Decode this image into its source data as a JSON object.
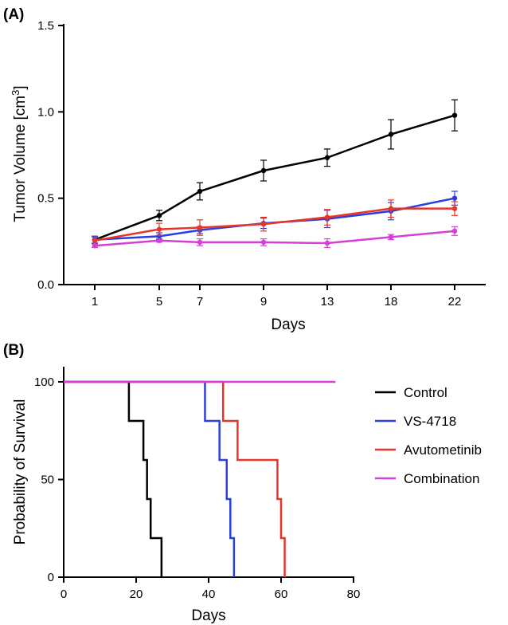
{
  "figure": {
    "panel_a_label": "(A)",
    "panel_b_label": "(B)"
  },
  "chart_data": [
    {
      "type": "line",
      "panel": "(A)",
      "xlabel": "Days",
      "ylabel_main": "Tumor Volume [cm",
      "ylabel_sup": "3",
      "ylabel_tail": "]",
      "categories": [
        "1",
        "5",
        "7",
        "9",
        "13",
        "18",
        "22"
      ],
      "ylim": [
        0,
        1.5
      ],
      "yticks": [
        "0.0",
        "0.5",
        "1.0",
        "1.5"
      ],
      "ytick_values": [
        0,
        0.5,
        1.0,
        1.5
      ],
      "grid": false,
      "series": [
        {
          "name": "Control",
          "color": "#000000",
          "values": [
            0.26,
            0.4,
            0.54,
            0.66,
            0.735,
            0.87,
            0.98
          ],
          "errors": [
            0.02,
            0.03,
            0.05,
            0.06,
            0.05,
            0.085,
            0.09
          ]
        },
        {
          "name": "VS-4718",
          "color": "#2b3fe0",
          "values": [
            0.26,
            0.28,
            0.315,
            0.355,
            0.38,
            0.425,
            0.5
          ],
          "errors": [
            0.02,
            0.02,
            0.02,
            0.03,
            0.05,
            0.05,
            0.04
          ]
        },
        {
          "name": "Avutometinib",
          "color": "#e8352a",
          "values": [
            0.255,
            0.32,
            0.33,
            0.35,
            0.39,
            0.44,
            0.44
          ],
          "errors": [
            0.02,
            0.035,
            0.045,
            0.04,
            0.045,
            0.05,
            0.04
          ]
        },
        {
          "name": "Combination",
          "color": "#d43fd6",
          "values": [
            0.225,
            0.255,
            0.245,
            0.245,
            0.24,
            0.275,
            0.31
          ],
          "errors": [
            0.01,
            0.01,
            0.02,
            0.02,
            0.025,
            0.015,
            0.025
          ]
        }
      ]
    },
    {
      "type": "line",
      "panel": "(B)",
      "xlabel": "Days",
      "ylabel": "Probability of Survival",
      "xlim": [
        0,
        80
      ],
      "ylim": [
        0,
        100
      ],
      "xticks": [
        "0",
        "20",
        "40",
        "60",
        "80"
      ],
      "xtick_values": [
        0,
        20,
        40,
        60,
        80
      ],
      "yticks": [
        "0",
        "50",
        "100"
      ],
      "ytick_values": [
        0,
        50,
        100
      ],
      "legend_position": "right",
      "grid": false,
      "series": [
        {
          "name": "Control",
          "color": "#000000",
          "steps": [
            [
              0,
              100
            ],
            [
              18,
              100
            ],
            [
              18,
              80
            ],
            [
              22,
              80
            ],
            [
              22,
              60
            ],
            [
              23,
              60
            ],
            [
              23,
              40
            ],
            [
              24,
              40
            ],
            [
              24,
              20
            ],
            [
              27,
              20
            ],
            [
              27,
              0
            ]
          ]
        },
        {
          "name": "VS-4718",
          "color": "#2b3fe0",
          "steps": [
            [
              0,
              100
            ],
            [
              39,
              100
            ],
            [
              39,
              80
            ],
            [
              43,
              80
            ],
            [
              43,
              60
            ],
            [
              45,
              60
            ],
            [
              45,
              40
            ],
            [
              46,
              40
            ],
            [
              46,
              20
            ],
            [
              47,
              20
            ],
            [
              47,
              0
            ]
          ]
        },
        {
          "name": "Avutometinib",
          "color": "#e8352a",
          "steps": [
            [
              0,
              100
            ],
            [
              44,
              100
            ],
            [
              44,
              80
            ],
            [
              48,
              80
            ],
            [
              48,
              60
            ],
            [
              59,
              60
            ],
            [
              59,
              40
            ],
            [
              60,
              40
            ],
            [
              60,
              20
            ],
            [
              61,
              20
            ],
            [
              61,
              0
            ]
          ]
        },
        {
          "name": "Combination",
          "color": "#d43fd6",
          "steps": [
            [
              0,
              100
            ],
            [
              75,
              100
            ]
          ]
        }
      ]
    }
  ]
}
